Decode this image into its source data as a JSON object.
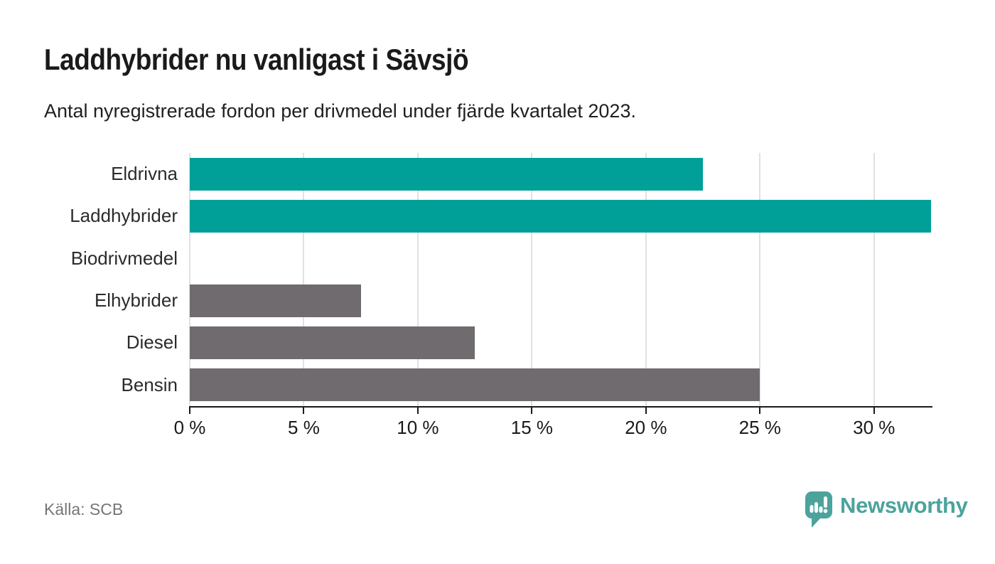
{
  "header": {
    "title": "Laddhybrider nu vanligast i Sävsjö",
    "subtitle": "Antal nyregistrerade fordon per drivmedel under fjärde kvartalet 2023."
  },
  "chart_data": {
    "type": "bar",
    "orientation": "horizontal",
    "title": "Laddhybrider nu vanligast i Sävsjö",
    "subtitle": "Antal nyregistrerade fordon per drivmedel under fjärde kvartalet 2023.",
    "categories": [
      "Eldrivna",
      "Laddhybrider",
      "Biodrivmedel",
      "Elhybrider",
      "Diesel",
      "Bensin"
    ],
    "values": [
      22.5,
      32.5,
      0,
      7.5,
      12.5,
      25
    ],
    "unit": "%",
    "highlighted": [
      true,
      true,
      false,
      false,
      false,
      false
    ],
    "xlim": [
      0,
      32.5
    ],
    "x_ticks": [
      0,
      5,
      10,
      15,
      20,
      25,
      30
    ],
    "x_tick_labels": [
      "0 %",
      "5 %",
      "10 %",
      "15 %",
      "20 %",
      "25 %",
      "30 %"
    ],
    "grid": "vertical",
    "legend": "none",
    "colors": {
      "highlight": "#00A098",
      "muted": "#6F6B6F",
      "gridline": "#e1e1e1",
      "axis": "#1a1a1a"
    }
  },
  "footer": {
    "source": "Källa: SCB",
    "brand": {
      "name": "Newsworthy",
      "color": "#4BA39C"
    }
  }
}
